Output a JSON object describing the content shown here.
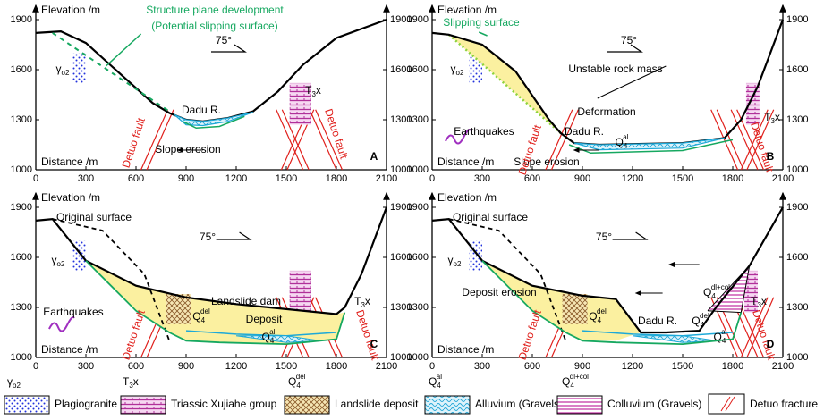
{
  "axes": {
    "y_label": "Elevation /m",
    "x_label": "Distance /m",
    "x_ticks": [
      "0",
      "300",
      "600",
      "900",
      "1200",
      "1500",
      "1800",
      "2100"
    ],
    "y_ticks": [
      "1000",
      "1300",
      "1600",
      "1900"
    ]
  },
  "panels": [
    {
      "letter": "A",
      "labels": [
        {
          "text": "Structure plane development"
        },
        {
          "text": "(Potential slipping surface)"
        },
        {
          "text": "75°"
        },
        {
          "base": "γ",
          "sub": "o2"
        },
        {
          "text": "Dadu R."
        },
        {
          "text": "Slope erosion"
        },
        {
          "text": "Detuo fault"
        },
        {
          "text": "Detuo fault"
        },
        {
          "base": "T",
          "sub": "3",
          "tail": "x"
        }
      ]
    },
    {
      "letter": "B",
      "labels": [
        {
          "text": "Slipping surface"
        },
        {
          "text": "75°"
        },
        {
          "text": "Unstable rock mass"
        },
        {
          "base": "γ",
          "sub": "o2"
        },
        {
          "text": "Deformation"
        },
        {
          "text": "Earthquakes"
        },
        {
          "text": "Dadu R."
        },
        {
          "text": "Slope erosion"
        },
        {
          "base": "Q",
          "sub": "4",
          "sup": "al"
        },
        {
          "text": "Detuo fault"
        },
        {
          "text": "Detuo fault"
        },
        {
          "base": "T",
          "sub": "3",
          "tail": "x"
        }
      ]
    },
    {
      "letter": "C",
      "labels": [
        {
          "text": "Original surface"
        },
        {
          "text": "75°"
        },
        {
          "base": "γ",
          "sub": "o2"
        },
        {
          "text": "Landslide dam"
        },
        {
          "base": "Q",
          "sub": "4",
          "sup": "del"
        },
        {
          "text": "Deposit"
        },
        {
          "text": "Earthquakes"
        },
        {
          "base": "Q",
          "sub": "4",
          "sup": "al"
        },
        {
          "text": "Detuo fault"
        },
        {
          "text": "Detuo fault"
        },
        {
          "base": "T",
          "sub": "3",
          "tail": "x"
        }
      ]
    },
    {
      "letter": "D",
      "labels": [
        {
          "text": "Original surface"
        },
        {
          "text": "75°"
        },
        {
          "base": "γ",
          "sub": "o2"
        },
        {
          "text": "Deposit erosion"
        },
        {
          "base": "Q",
          "sub": "4",
          "sup": "dl+col"
        },
        {
          "base": "Q",
          "sub": "4",
          "sup": "del"
        },
        {
          "text": "Dadu R."
        },
        {
          "base": "Q",
          "sub": "4",
          "sup": "del"
        },
        {
          "base": "Q",
          "sub": "4",
          "sup": "al"
        },
        {
          "text": "Detuo fault"
        },
        {
          "text": "Detuo fault"
        },
        {
          "base": "T",
          "sub": "3",
          "tail": "x"
        }
      ]
    }
  ],
  "legend": [
    {
      "symbol": {
        "base": "γ",
        "sub": "o2"
      },
      "label": "Plagiogranite"
    },
    {
      "symbol": {
        "base": "T",
        "sub": "3",
        "tail": "x"
      },
      "label": "Triassic Xujiahe group"
    },
    {
      "symbol": {
        "base": "Q",
        "sub": "4",
        "sup": "del"
      },
      "label": "Landslide deposit"
    },
    {
      "symbol": {
        "base": "Q",
        "sub": "4",
        "sup": "al"
      },
      "label": "Alluvium (Gravels)"
    },
    {
      "symbol": {
        "base": "Q",
        "sub": "4",
        "sup": "dl+col"
      },
      "label": "Colluvium (Gravels)"
    },
    {
      "label": "Detuo fracture"
    }
  ]
}
